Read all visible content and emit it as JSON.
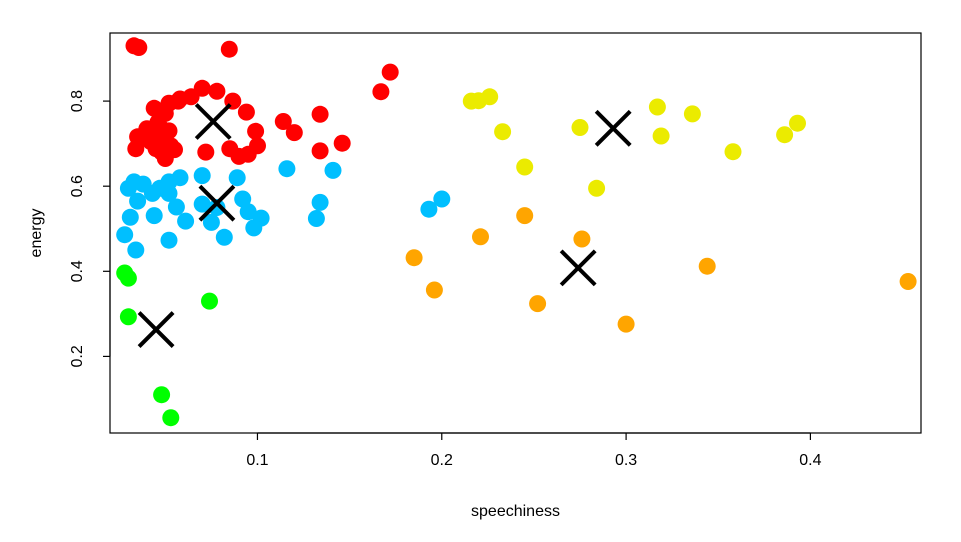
{
  "chart_data": {
    "type": "scatter",
    "title": "",
    "xlabel": "speechiness",
    "ylabel": "energy",
    "xlim": [
      0.02,
      0.46
    ],
    "ylim": [
      0.02,
      0.96
    ],
    "x_ticks": [
      0.1,
      0.2,
      0.3,
      0.4
    ],
    "y_ticks": [
      0.2,
      0.4,
      0.6,
      0.8
    ],
    "x_tick_labels": [
      "0.1",
      "0.2",
      "0.3",
      "0.4"
    ],
    "y_tick_labels": [
      "0.2",
      "0.4",
      "0.6",
      "0.8"
    ],
    "grid": false,
    "legend": "none",
    "series": [
      {
        "color": "#ff0000",
        "points": [
          [
            0.033,
            0.93
          ],
          [
            0.0356,
            0.926
          ],
          [
            0.0847,
            0.922
          ],
          [
            0.172,
            0.868
          ],
          [
            0.167,
            0.822
          ],
          [
            0.07,
            0.83
          ],
          [
            0.078,
            0.823
          ],
          [
            0.064,
            0.81
          ],
          [
            0.057,
            0.8
          ],
          [
            0.052,
            0.795
          ],
          [
            0.0866,
            0.8
          ],
          [
            0.044,
            0.783
          ],
          [
            0.094,
            0.774
          ],
          [
            0.05,
            0.771
          ],
          [
            0.134,
            0.769
          ],
          [
            0.114,
            0.752
          ],
          [
            0.046,
            0.75
          ],
          [
            0.04,
            0.735
          ],
          [
            0.052,
            0.73
          ],
          [
            0.099,
            0.729
          ],
          [
            0.12,
            0.726
          ],
          [
            0.035,
            0.716
          ],
          [
            0.047,
            0.708
          ],
          [
            0.042,
            0.705
          ],
          [
            0.146,
            0.701
          ],
          [
            0.053,
            0.695
          ],
          [
            0.1,
            0.695
          ],
          [
            0.034,
            0.688
          ],
          [
            0.045,
            0.688
          ],
          [
            0.055,
            0.686
          ],
          [
            0.085,
            0.688
          ],
          [
            0.134,
            0.683
          ],
          [
            0.048,
            0.68
          ],
          [
            0.072,
            0.68
          ],
          [
            0.095,
            0.675
          ],
          [
            0.09,
            0.67
          ],
          [
            0.05,
            0.665
          ],
          [
            0.043,
            0.73
          ],
          [
            0.048,
            0.735
          ],
          [
            0.058,
            0.805
          ]
        ]
      },
      {
        "color": "#00bfff",
        "points": [
          [
            0.116,
            0.641
          ],
          [
            0.141,
            0.637
          ],
          [
            0.07,
            0.625
          ],
          [
            0.089,
            0.62
          ],
          [
            0.058,
            0.62
          ],
          [
            0.033,
            0.61
          ],
          [
            0.038,
            0.605
          ],
          [
            0.03,
            0.595
          ],
          [
            0.047,
            0.595
          ],
          [
            0.052,
            0.61
          ],
          [
            0.043,
            0.583
          ],
          [
            0.052,
            0.583
          ],
          [
            0.092,
            0.57
          ],
          [
            0.035,
            0.565
          ],
          [
            0.134,
            0.562
          ],
          [
            0.07,
            0.558
          ],
          [
            0.078,
            0.55
          ],
          [
            0.056,
            0.551
          ],
          [
            0.095,
            0.54
          ],
          [
            0.044,
            0.531
          ],
          [
            0.031,
            0.527
          ],
          [
            0.102,
            0.525
          ],
          [
            0.132,
            0.524
          ],
          [
            0.061,
            0.518
          ],
          [
            0.075,
            0.515
          ],
          [
            0.098,
            0.502
          ],
          [
            0.028,
            0.486
          ],
          [
            0.082,
            0.48
          ],
          [
            0.052,
            0.473
          ],
          [
            0.034,
            0.45
          ],
          [
            0.2,
            0.57
          ],
          [
            0.193,
            0.546
          ]
        ]
      },
      {
        "color": "#00ff00",
        "points": [
          [
            0.028,
            0.396
          ],
          [
            0.03,
            0.384
          ],
          [
            0.074,
            0.33
          ],
          [
            0.03,
            0.293
          ],
          [
            0.048,
            0.11
          ],
          [
            0.053,
            0.056
          ]
        ]
      },
      {
        "color": "#ffa500",
        "points": [
          [
            0.185,
            0.432
          ],
          [
            0.221,
            0.481
          ],
          [
            0.245,
            0.531
          ],
          [
            0.276,
            0.476
          ],
          [
            0.196,
            0.356
          ],
          [
            0.252,
            0.324
          ],
          [
            0.3,
            0.276
          ],
          [
            0.344,
            0.412
          ],
          [
            0.453,
            0.376
          ]
        ]
      },
      {
        "color": "#ebeb00",
        "points": [
          [
            0.216,
            0.8
          ],
          [
            0.22,
            0.801
          ],
          [
            0.226,
            0.81
          ],
          [
            0.233,
            0.728
          ],
          [
            0.245,
            0.645
          ],
          [
            0.275,
            0.738
          ],
          [
            0.284,
            0.595
          ],
          [
            0.317,
            0.786
          ],
          [
            0.319,
            0.718
          ],
          [
            0.336,
            0.77
          ],
          [
            0.358,
            0.681
          ],
          [
            0.386,
            0.721
          ],
          [
            0.393,
            0.748
          ]
        ]
      }
    ],
    "centers": [
      [
        0.076,
        0.752
      ],
      [
        0.078,
        0.56
      ],
      [
        0.045,
        0.263
      ],
      [
        0.274,
        0.408
      ],
      [
        0.293,
        0.736
      ]
    ]
  }
}
